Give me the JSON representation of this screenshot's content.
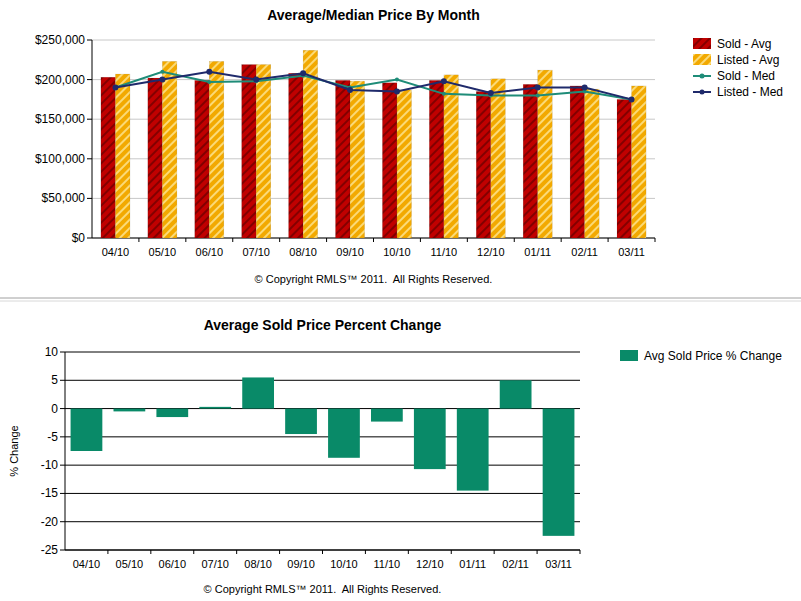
{
  "chart_data": [
    {
      "type": "bar",
      "title": "Average/Median Price By Month",
      "categories": [
        "04/10",
        "05/10",
        "06/10",
        "07/10",
        "08/10",
        "09/10",
        "10/10",
        "11/10",
        "12/10",
        "01/11",
        "02/11",
        "03/11"
      ],
      "series": [
        {
          "name": "Sold - Avg",
          "type": "bar",
          "color": "#c00000",
          "values": [
            203000,
            202000,
            199000,
            219000,
            208000,
            199000,
            196000,
            199000,
            185000,
            194000,
            192000,
            175000
          ]
        },
        {
          "name": "Listed - Avg",
          "type": "bar",
          "color": "#f2a900",
          "values": [
            207000,
            223000,
            223000,
            219000,
            237000,
            198000,
            187000,
            206000,
            201000,
            212000,
            188000,
            192000
          ]
        },
        {
          "name": "Sold - Med",
          "type": "line",
          "color": "#1e8c78",
          "marker": "circle",
          "values": [
            190000,
            210000,
            197000,
            198000,
            205000,
            190000,
            200000,
            182000,
            180000,
            180000,
            185000,
            175000
          ]
        },
        {
          "name": "Listed - Med",
          "type": "line",
          "color": "#1f2a6b",
          "marker": "circle",
          "values": [
            190000,
            200000,
            210000,
            200000,
            208000,
            187000,
            185000,
            198000,
            183000,
            190000,
            190000,
            175000
          ]
        }
      ],
      "ylim": [
        0,
        250000
      ],
      "yticks": [
        {
          "value": 0,
          "label": "$0"
        },
        {
          "value": 50000,
          "label": "$50,000"
        },
        {
          "value": 100000,
          "label": "$100,000"
        },
        {
          "value": 150000,
          "label": "$150,000"
        },
        {
          "value": 200000,
          "label": "$200,000"
        },
        {
          "value": 250000,
          "label": "$250,000"
        }
      ],
      "grid": true,
      "legend": "right",
      "annotations": [
        "© Copyright RMLS™ 2011.  All Rights Reserved."
      ]
    },
    {
      "type": "bar",
      "title": "Average Sold Price Percent Change",
      "y_label": "% Change",
      "categories": [
        "04/10",
        "05/10",
        "06/10",
        "07/10",
        "08/10",
        "09/10",
        "10/10",
        "11/10",
        "12/10",
        "01/11",
        "02/11",
        "03/11"
      ],
      "series": [
        {
          "name": "Avg Sold Price % Change",
          "color": "#098a68",
          "values": [
            -7.5,
            -0.5,
            -1.5,
            0.3,
            5.5,
            -4.5,
            -8.7,
            -2.3,
            -10.7,
            -14.5,
            5.0,
            -22.5
          ]
        }
      ],
      "ylim": [
        -25,
        10
      ],
      "yticks": [
        -25,
        -20,
        -15,
        -10,
        -5,
        0,
        5,
        10
      ],
      "grid": true,
      "legend": "right",
      "annotations": [
        "© Copyright RMLS™ 2011.  All Rights Reserved."
      ]
    }
  ]
}
